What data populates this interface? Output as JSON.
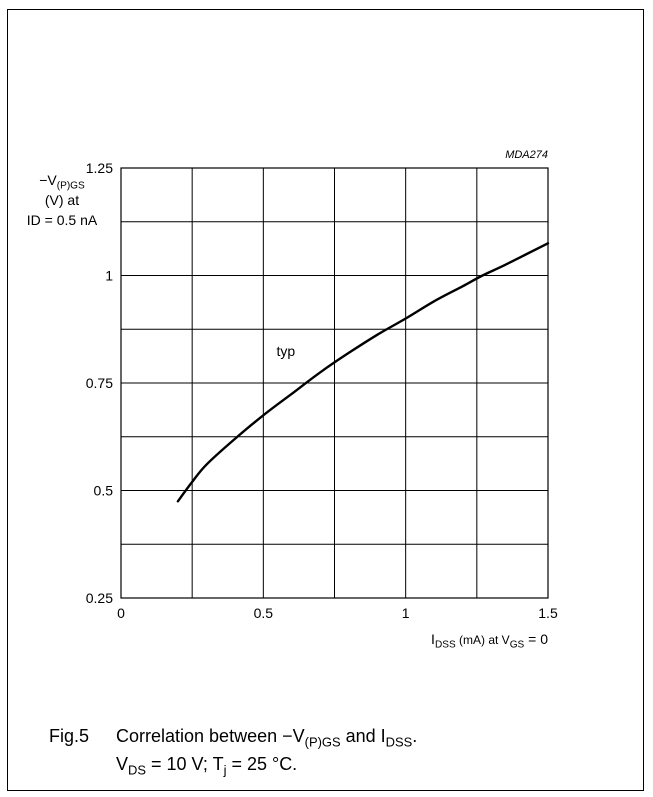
{
  "chart_data": {
    "type": "line",
    "code": "MDA274",
    "ylabel": {
      "line1_prefix": "−V",
      "line1_sub": "(P)GS",
      "line2": "(V) at",
      "line3": "ID = 0.5 nA"
    },
    "xlabel": {
      "main": "I",
      "main_sub": "DSS",
      "unit": " (mA) at V",
      "cond_sub": "GS",
      "tail": " = 0"
    },
    "xlim": [
      0,
      1.5
    ],
    "ylim": [
      0.25,
      1.25
    ],
    "x_ticks": [
      0,
      0.5,
      1,
      1.5
    ],
    "x_tick_labels": [
      "0",
      "0.5",
      "1",
      "1.5"
    ],
    "y_ticks": [
      0.25,
      0.5,
      0.75,
      1,
      1.25
    ],
    "y_tick_labels": [
      "0.25",
      "0.5",
      "0.75",
      "1",
      "1.25"
    ],
    "grid": true,
    "series": [
      {
        "name": "typ",
        "x": [
          0.2,
          0.25,
          0.3,
          0.4,
          0.5,
          0.6,
          0.7,
          0.8,
          0.9,
          1.0,
          1.1,
          1.2,
          1.27,
          1.35,
          1.5
        ],
        "y": [
          0.475,
          0.52,
          0.56,
          0.62,
          0.675,
          0.725,
          0.775,
          0.82,
          0.862,
          0.9,
          0.94,
          0.975,
          1.0,
          1.025,
          1.075
        ]
      }
    ],
    "annotation": {
      "text": "typ",
      "x": 0.6,
      "y": 0.79
    }
  },
  "caption": {
    "fig": "Fig.5",
    "line1_a": "Correlation between −V",
    "line1_sub1": "(P)GS",
    "line1_b": " and I",
    "line1_sub2": "DSS",
    "line1_c": ".",
    "line2_a": "V",
    "line2_sub1": "DS",
    "line2_b": " = 10 V; T",
    "line2_sub2": "j",
    "line2_c": " = 25 °C."
  }
}
